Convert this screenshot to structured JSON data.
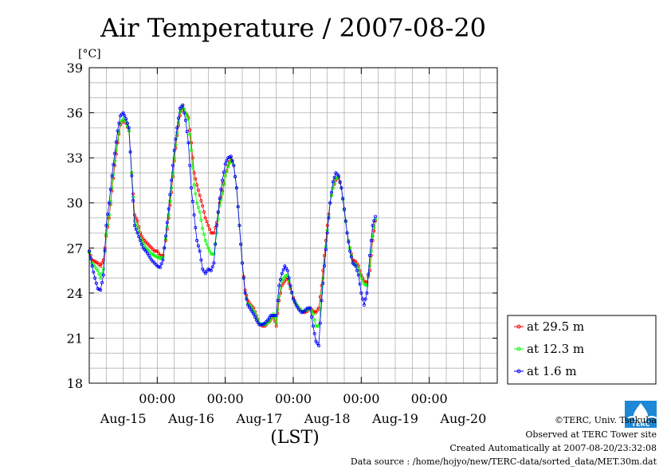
{
  "chart_data": {
    "type": "line",
    "title": "Air Temperature / 2007-08-20",
    "ylabel": "[°C]",
    "xlabel": "(LST)",
    "ylim": [
      18,
      39
    ],
    "xlim": [
      0,
      144
    ],
    "yticks": [
      18,
      21,
      24,
      27,
      30,
      33,
      36,
      39
    ],
    "midnight_label": "00:00",
    "midnight_ticks_hours": [
      24,
      48,
      72,
      96,
      120
    ],
    "date_labels": [
      {
        "label": "Aug-15",
        "hour": 12
      },
      {
        "label": "Aug-16",
        "hour": 36
      },
      {
        "label": "Aug-17",
        "hour": 60
      },
      {
        "label": "Aug-18",
        "hour": 84
      },
      {
        "label": "Aug-19",
        "hour": 108
      },
      {
        "label": "Aug-20",
        "hour": 132
      }
    ],
    "grid": true,
    "legend_position": "right-bottom",
    "x_units": "hours since 2007-08-14 12:00 LST",
    "series": [
      {
        "name": "at 29.5 m",
        "color": "#ff0000",
        "points": [
          [
            0,
            26.8
          ],
          [
            1,
            26.2
          ],
          [
            3,
            26
          ],
          [
            4,
            25.8
          ],
          [
            5,
            26.2
          ],
          [
            6,
            27.8
          ],
          [
            7,
            29
          ],
          [
            8,
            30.8
          ],
          [
            9,
            32.5
          ],
          [
            10,
            34
          ],
          [
            11,
            35.2
          ],
          [
            12,
            35.5
          ],
          [
            13,
            35.3
          ],
          [
            14,
            34.8
          ],
          [
            15,
            32
          ],
          [
            16,
            29.2
          ],
          [
            17,
            28.8
          ],
          [
            18,
            28
          ],
          [
            19,
            27.6
          ],
          [
            20,
            27.4
          ],
          [
            21,
            27.2
          ],
          [
            22,
            27
          ],
          [
            23,
            26.8
          ],
          [
            24,
            26.8
          ],
          [
            25,
            26.5
          ],
          [
            26,
            26.5
          ],
          [
            27,
            27.5
          ],
          [
            28,
            29
          ],
          [
            29,
            30.7
          ],
          [
            30,
            32.8
          ],
          [
            31,
            34.5
          ],
          [
            32,
            35.8
          ],
          [
            33,
            36.5
          ],
          [
            34,
            36
          ],
          [
            35,
            35.7
          ],
          [
            36,
            34
          ],
          [
            37,
            32
          ],
          [
            38,
            31.2
          ],
          [
            39,
            30.5
          ],
          [
            40,
            29.8
          ],
          [
            41,
            29
          ],
          [
            42,
            28.5
          ],
          [
            43,
            28
          ],
          [
            44,
            28
          ],
          [
            45,
            28.7
          ],
          [
            46,
            30
          ],
          [
            47,
            30.8
          ],
          [
            48,
            31.8
          ],
          [
            49,
            32.5
          ],
          [
            50,
            33
          ],
          [
            51,
            32.5
          ],
          [
            52,
            31
          ],
          [
            53,
            28.5
          ],
          [
            54,
            26
          ],
          [
            55,
            24.2
          ],
          [
            56,
            23.5
          ],
          [
            57,
            23.2
          ],
          [
            58,
            23
          ],
          [
            59,
            22.5
          ],
          [
            60,
            22
          ],
          [
            61,
            21.8
          ],
          [
            62,
            21.8
          ],
          [
            63,
            22
          ],
          [
            64,
            22.2
          ],
          [
            65,
            22.5
          ],
          [
            66,
            21.8
          ],
          [
            67,
            23.5
          ],
          [
            68,
            24.5
          ],
          [
            69,
            24.8
          ],
          [
            70,
            25
          ],
          [
            71,
            24.3
          ],
          [
            72,
            23.7
          ],
          [
            73,
            23.3
          ],
          [
            74,
            23
          ],
          [
            75,
            22.8
          ],
          [
            76,
            22.7
          ],
          [
            77,
            22.8
          ],
          [
            78,
            23
          ],
          [
            79,
            22.8
          ],
          [
            80,
            22.7
          ],
          [
            81,
            23
          ],
          [
            82,
            24.5
          ],
          [
            83,
            26.5
          ],
          [
            84,
            28.5
          ],
          [
            85,
            30
          ],
          [
            86,
            31
          ],
          [
            87,
            31.5
          ],
          [
            88,
            31.7
          ],
          [
            89,
            31
          ],
          [
            90,
            29.5
          ],
          [
            91,
            28
          ],
          [
            92,
            27
          ],
          [
            93,
            26.2
          ],
          [
            94,
            26.1
          ],
          [
            95,
            25.8
          ],
          [
            96,
            25.2
          ],
          [
            97,
            24.8
          ],
          [
            98,
            24.7
          ],
          [
            99,
            25.5
          ],
          [
            100,
            27.5
          ],
          [
            101,
            28.8
          ]
        ]
      },
      {
        "name": "at 12.3 m",
        "color": "#00ff00",
        "points": [
          [
            0,
            26.7
          ],
          [
            1,
            26
          ],
          [
            3,
            25.5
          ],
          [
            4,
            25
          ],
          [
            5,
            25.6
          ],
          [
            6,
            27.9
          ],
          [
            7,
            29.2
          ],
          [
            8,
            31
          ],
          [
            9,
            32.8
          ],
          [
            10,
            34.2
          ],
          [
            11,
            35.3
          ],
          [
            12,
            35.6
          ],
          [
            13,
            35.4
          ],
          [
            14,
            34.8
          ],
          [
            15,
            32
          ],
          [
            16,
            28.8
          ],
          [
            17,
            28.4
          ],
          [
            18,
            27.7
          ],
          [
            19,
            27.3
          ],
          [
            20,
            27
          ],
          [
            21,
            26.8
          ],
          [
            22,
            26.6
          ],
          [
            23,
            26.5
          ],
          [
            24,
            26.4
          ],
          [
            25,
            26.3
          ],
          [
            26,
            26.4
          ],
          [
            27,
            27.6
          ],
          [
            28,
            29.2
          ],
          [
            29,
            31
          ],
          [
            30,
            33
          ],
          [
            31,
            34.7
          ],
          [
            32,
            36
          ],
          [
            33,
            36.5
          ],
          [
            34,
            36
          ],
          [
            35,
            35.6
          ],
          [
            36,
            33.5
          ],
          [
            37,
            31.2
          ],
          [
            38,
            30
          ],
          [
            39,
            29.4
          ],
          [
            40,
            28.3
          ],
          [
            41,
            27.5
          ],
          [
            42,
            27
          ],
          [
            43,
            26.6
          ],
          [
            44,
            26.6
          ],
          [
            45,
            28
          ],
          [
            46,
            29.8
          ],
          [
            47,
            30.6
          ],
          [
            48,
            31.8
          ],
          [
            49,
            32.4
          ],
          [
            50,
            32.9
          ],
          [
            51,
            32.5
          ],
          [
            52,
            31
          ],
          [
            53,
            28.5
          ],
          [
            54,
            26
          ],
          [
            55,
            24
          ],
          [
            56,
            23.3
          ],
          [
            57,
            23.1
          ],
          [
            58,
            22.8
          ],
          [
            59,
            22.4
          ],
          [
            60,
            22
          ],
          [
            61,
            21.9
          ],
          [
            62,
            21.9
          ],
          [
            63,
            22
          ],
          [
            64,
            22.3
          ],
          [
            65,
            22.6
          ],
          [
            66,
            22
          ],
          [
            67,
            23.8
          ],
          [
            68,
            24.8
          ],
          [
            69,
            25.1
          ],
          [
            70,
            25.2
          ],
          [
            71,
            24.4
          ],
          [
            72,
            23.6
          ],
          [
            73,
            23.3
          ],
          [
            74,
            23
          ],
          [
            75,
            22.8
          ],
          [
            76,
            22.8
          ],
          [
            77,
            22.9
          ],
          [
            78,
            23
          ],
          [
            79,
            22.6
          ],
          [
            80,
            21.8
          ],
          [
            81,
            21.8
          ],
          [
            82,
            24
          ],
          [
            83,
            26
          ],
          [
            84,
            28.2
          ],
          [
            85,
            30
          ],
          [
            86,
            31
          ],
          [
            87,
            31.6
          ],
          [
            88,
            31.8
          ],
          [
            89,
            31
          ],
          [
            90,
            29.5
          ],
          [
            91,
            28
          ],
          [
            92,
            27
          ],
          [
            93,
            26
          ],
          [
            94,
            25.9
          ],
          [
            95,
            25.6
          ],
          [
            96,
            25
          ],
          [
            97,
            24.6
          ],
          [
            98,
            24.5
          ],
          [
            99,
            25.8
          ],
          [
            100,
            27.8
          ],
          [
            101,
            28.9
          ]
        ]
      },
      {
        "name": "at 1.6 m",
        "color": "#0000ff",
        "points": [
          [
            0,
            26.8
          ],
          [
            1,
            25.8
          ],
          [
            2,
            25
          ],
          [
            3,
            24.3
          ],
          [
            4,
            24.2
          ],
          [
            5,
            25.2
          ],
          [
            6,
            28.5
          ],
          [
            7,
            30
          ],
          [
            8,
            31.8
          ],
          [
            9,
            33.3
          ],
          [
            10,
            34.8
          ],
          [
            11,
            35.8
          ],
          [
            12,
            36
          ],
          [
            13,
            35.6
          ],
          [
            14,
            35
          ],
          [
            15,
            31.8
          ],
          [
            16,
            28.5
          ],
          [
            17,
            28
          ],
          [
            18,
            27.5
          ],
          [
            19,
            27
          ],
          [
            20,
            26.8
          ],
          [
            21,
            26.5
          ],
          [
            22,
            26.2
          ],
          [
            23,
            26
          ],
          [
            24,
            25.8
          ],
          [
            25,
            25.7
          ],
          [
            26,
            26.2
          ],
          [
            27,
            27.8
          ],
          [
            28,
            29.6
          ],
          [
            29,
            31.5
          ],
          [
            30,
            33.5
          ],
          [
            31,
            35
          ],
          [
            32,
            36.3
          ],
          [
            33,
            36.5
          ],
          [
            34,
            35.5
          ],
          [
            35,
            34
          ],
          [
            36,
            31
          ],
          [
            37,
            29.2
          ],
          [
            38,
            27.5
          ],
          [
            39,
            26.8
          ],
          [
            40,
            25.6
          ],
          [
            41,
            25.3
          ],
          [
            42,
            25.6
          ],
          [
            43,
            25.5
          ],
          [
            44,
            26
          ],
          [
            45,
            28.5
          ],
          [
            46,
            30.3
          ],
          [
            47,
            31.5
          ],
          [
            48,
            32.6
          ],
          [
            49,
            33
          ],
          [
            50,
            33.1
          ],
          [
            51,
            32.5
          ],
          [
            52,
            31
          ],
          [
            53,
            28.5
          ],
          [
            54,
            26
          ],
          [
            55,
            24
          ],
          [
            56,
            23.2
          ],
          [
            57,
            22.9
          ],
          [
            58,
            22.6
          ],
          [
            59,
            22.2
          ],
          [
            60,
            21.9
          ],
          [
            61,
            21.9
          ],
          [
            62,
            22
          ],
          [
            63,
            22.2
          ],
          [
            64,
            22.5
          ],
          [
            65,
            22.5
          ],
          [
            66,
            22.5
          ],
          [
            67,
            24.5
          ],
          [
            68,
            25.3
          ],
          [
            69,
            25.8
          ],
          [
            70,
            25.5
          ],
          [
            71,
            24.5
          ],
          [
            72,
            23.6
          ],
          [
            73,
            23.2
          ],
          [
            74,
            22.9
          ],
          [
            75,
            22.7
          ],
          [
            76,
            22.8
          ],
          [
            77,
            23
          ],
          [
            78,
            23
          ],
          [
            79,
            21.8
          ],
          [
            80,
            20.8
          ],
          [
            81,
            20.5
          ],
          [
            82,
            23.5
          ],
          [
            83,
            25.8
          ],
          [
            84,
            28
          ],
          [
            85,
            30
          ],
          [
            86,
            31.4
          ],
          [
            87,
            32
          ],
          [
            88,
            31.8
          ],
          [
            89,
            31
          ],
          [
            90,
            29.6
          ],
          [
            91,
            28
          ],
          [
            92,
            26.8
          ],
          [
            93,
            26
          ],
          [
            94,
            25.8
          ],
          [
            95,
            25.2
          ],
          [
            96,
            24
          ],
          [
            97,
            23.2
          ],
          [
            98,
            24
          ],
          [
            99,
            26.5
          ],
          [
            100,
            28.5
          ],
          [
            101,
            29.1
          ]
        ]
      }
    ]
  },
  "credits": {
    "copyright": "©TERC, Univ. Tsukuba",
    "observed": "Observed at TERC Tower site",
    "created": "Created Automatically at 2007-08-20/23:32:08",
    "source": "Data source : /home/hojyo/new/TERC-data/sorted_data/MET.30m.dat",
    "logo_text": "TERC"
  }
}
